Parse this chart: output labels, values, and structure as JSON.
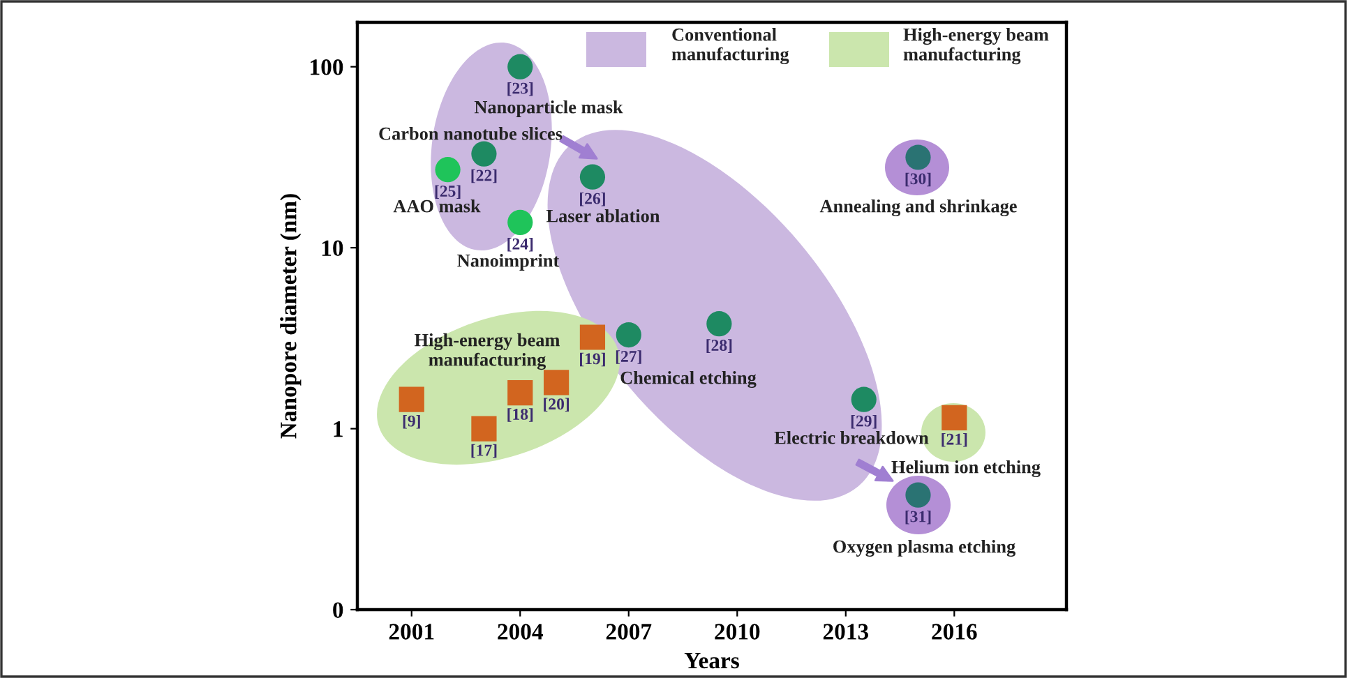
{
  "chart_data": {
    "type": "scatter",
    "xlabel": "Years",
    "ylabel": "Nanopore diameter (nm)",
    "log": "y",
    "xlim": [
      1999.5,
      2019.1
    ],
    "xticks": [
      2001,
      2004,
      2007,
      2010,
      2013,
      2016
    ],
    "ylim": [
      0.1,
      176
    ],
    "yticks": [
      {
        "value": 0.1,
        "label": "0"
      },
      1,
      10,
      100
    ],
    "grid": false,
    "series": [
      {
        "marker": "circle",
        "x": [
          2004,
          2003,
          2006,
          2007,
          2009.5,
          2013.5,
          2015,
          2015
        ],
        "values": [
          100,
          33,
          24.6,
          3.3,
          3.8,
          1.45,
          31.6,
          0.43
        ],
        "colors": [
          "#1e8a62",
          "#1e8a62",
          "#1e8a62",
          "#1e8a62",
          "#1e8a62",
          "#1e8a62",
          "#2a7373",
          "#2a7373"
        ]
      },
      {
        "marker": "circle",
        "x": [
          2002,
          2004
        ],
        "values": [
          27,
          13.8
        ],
        "color": "#1fc45a"
      },
      {
        "marker": "square",
        "x": [
          2001,
          2003,
          2004,
          2005,
          2006,
          2016
        ],
        "values": [
          1.45,
          1.0,
          1.58,
          1.8,
          3.2,
          1.15
        ],
        "color": "#d2651f"
      }
    ],
    "annotations": [
      "Conventional\nmanufacturing",
      "High-energy beam\nmanufacturing",
      "Nanoparticle mask",
      "Carbon nanotube slices",
      "AAO mask",
      "Nanoimprint",
      "Laser ablation",
      "High-energy beam\nmanufacturing",
      "Chemical etching",
      "Electric breakdown",
      "Helium ion etching",
      "Oxygen plasma etching",
      "Annealing and shrinkage",
      {
        "text": "[23]",
        "x": 2004,
        "y": 100
      },
      {
        "text": "[22]",
        "x": 2003,
        "y": 33
      },
      {
        "text": "[26]",
        "x": 2006,
        "y": 24.6
      },
      {
        "text": "[27]",
        "x": 2007,
        "y": 3.3
      },
      {
        "text": "[28]",
        "x": 2009.5,
        "y": 3.8
      },
      {
        "text": "[29]",
        "x": 2013.5,
        "y": 1.45
      },
      {
        "text": "[30]",
        "x": 2015,
        "y": 31.6
      },
      {
        "text": "[31]",
        "x": 2015,
        "y": 0.43
      },
      {
        "text": "[25]",
        "x": 2002,
        "y": 27
      },
      {
        "text": "[24]",
        "x": 2004,
        "y": 13.8
      },
      {
        "text": "[9]",
        "x": 2001,
        "y": 1.45
      },
      {
        "text": "[17]",
        "x": 2003,
        "y": 1.0
      },
      {
        "text": "[18]",
        "x": 2004,
        "y": 1.58
      },
      {
        "text": "[20]",
        "x": 2005,
        "y": 1.8
      },
      {
        "text": "[19]",
        "x": 2006,
        "y": 3.2
      },
      {
        "text": "[21]",
        "x": 2016,
        "y": 1.15
      }
    ]
  }
}
